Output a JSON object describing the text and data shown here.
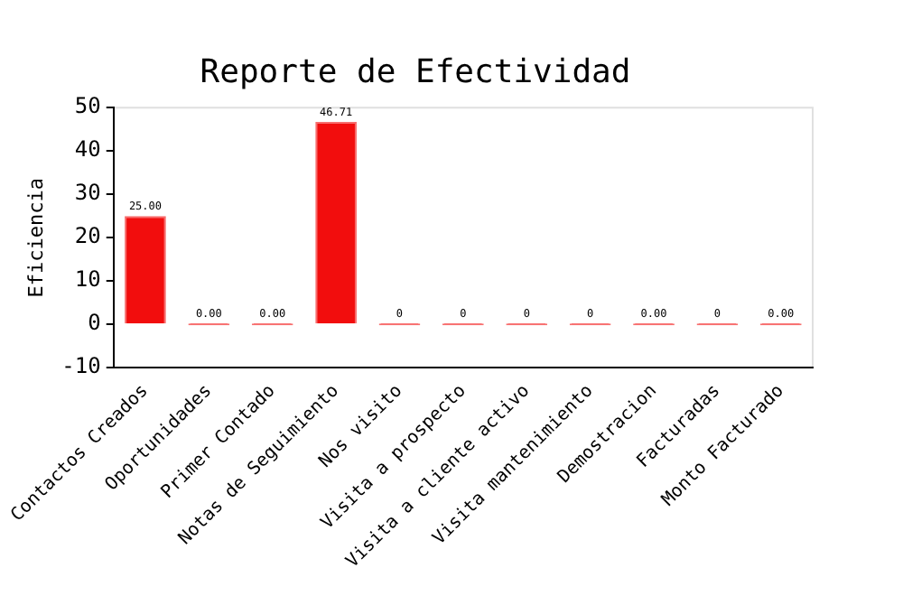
{
  "chart_data": {
    "type": "bar",
    "title": "Reporte de Efectividad",
    "ylabel": "Eficiencia",
    "categories": [
      "Contactos Creados",
      "Oportunidades",
      "Primer Contado",
      "Notas de Seguimiento",
      "Nos visito",
      "Visita a prospecto",
      "Visita a cliente activo",
      "Visita mantenimiento",
      "Demostracion",
      "Facturadas",
      "Monto Facturado"
    ],
    "values": [
      25,
      0,
      0,
      46.71,
      0,
      0,
      0,
      0,
      0,
      0,
      0
    ],
    "value_labels": [
      "25.00",
      "0.00",
      "0.00",
      "46.71",
      "0",
      "0",
      "0",
      "0",
      "0.00",
      "0",
      "0.00"
    ],
    "color": "#f20d0d",
    "ylim": [
      -10,
      50
    ],
    "yticks": [
      -10,
      0,
      10,
      20,
      30,
      40,
      50
    ],
    "grid": false,
    "legend": false
  }
}
